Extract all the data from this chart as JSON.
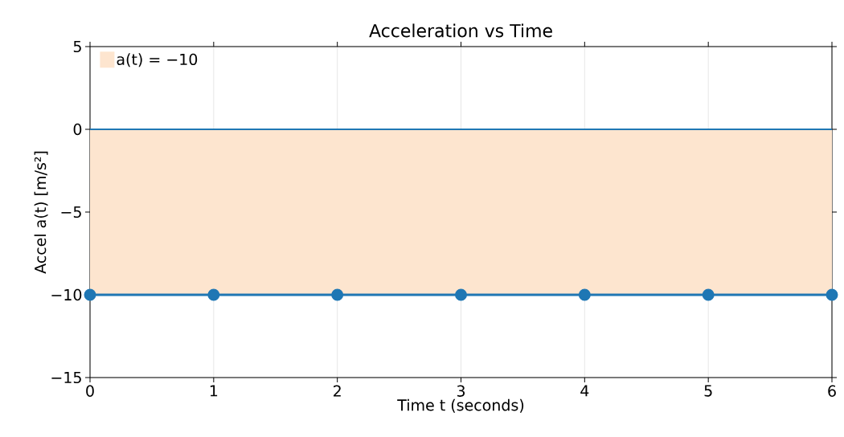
{
  "chart_data": {
    "type": "line",
    "title": "Acceleration vs Time",
    "xlabel": "Time t (seconds)",
    "ylabel": "Accel a(t) [m/s²]",
    "x": [
      0,
      1,
      2,
      3,
      4,
      5,
      6
    ],
    "series": [
      {
        "color": "#1f77b4",
        "values": [
          -10,
          -10,
          -10,
          -10,
          -10,
          -10,
          -10
        ]
      }
    ],
    "marker": "circle",
    "line_style": "solid",
    "xlim": [
      0,
      6
    ],
    "xticks": [
      0,
      1,
      2,
      3,
      4,
      5,
      6
    ],
    "ylim": [
      -15,
      5
    ],
    "yticks": [
      {
        "value": -15,
        "label": "−15"
      },
      {
        "value": -10,
        "label": "−10"
      },
      {
        "value": -5,
        "label": "−5"
      },
      0,
      5
    ],
    "ref_lines": [
      {
        "axis": "y",
        "value": 0,
        "color": "#1f77b4"
      }
    ],
    "bands": [
      {
        "axis": "y",
        "from": -10,
        "to": 0,
        "label": "a(t) = −10",
        "color": "#fde5cf"
      }
    ],
    "grid": true,
    "legend": "top left"
  }
}
